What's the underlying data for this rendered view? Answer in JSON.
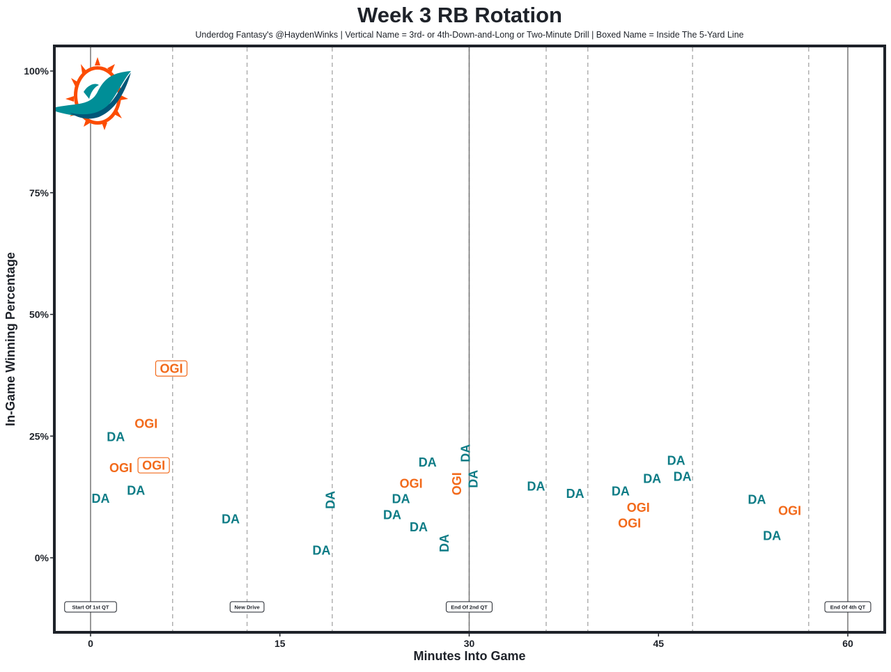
{
  "chart_data": {
    "type": "scatter",
    "title": "Week 3 RB Rotation",
    "subtitle": "Underdog Fantasy's @HaydenWinks | Vertical Name = 3rd- or 4th-Down-and-Long or Two-Minute Drill | Boxed Name = Inside The 5-Yard Line",
    "xlabel": "Minutes Into Game",
    "ylabel": "In-Game Winning Percentage",
    "xlim": [
      -2.8,
      62.5
    ],
    "ylim": [
      -15,
      105
    ],
    "xticks": [
      0,
      15,
      30,
      45,
      60
    ],
    "xtick_labels": [
      "0",
      "15",
      "30",
      "45",
      "60"
    ],
    "yticks": [
      0,
      25,
      50,
      75,
      100
    ],
    "ytick_labels": [
      "0%",
      "25%",
      "50%",
      "75%",
      "100%"
    ],
    "grid": false,
    "colors": {
      "DA": "#0e7c86",
      "OGI": "#f26a1b",
      "text": "#1e2229"
    },
    "logo_text": "Miami Dolphins",
    "quarter_lines": [
      0,
      30,
      60
    ],
    "event_lines": [
      6.5,
      12.4,
      19.15,
      30,
      36.1,
      39.4,
      47.7,
      56.9
    ],
    "annotations": [
      {
        "x": 0,
        "label": "Start Of 1st QT"
      },
      {
        "x": 12.4,
        "label": "New Drive"
      },
      {
        "x": 30,
        "label": "End Of 2nd QT"
      },
      {
        "x": 60,
        "label": "End Of 4th QT"
      }
    ],
    "points": [
      {
        "x": 0.8,
        "y": 12.2,
        "label": "DA",
        "style": "normal"
      },
      {
        "x": 2.0,
        "y": 24.9,
        "label": "DA",
        "style": "normal"
      },
      {
        "x": 2.4,
        "y": 18.5,
        "label": "OGI",
        "style": "normal"
      },
      {
        "x": 4.4,
        "y": 27.6,
        "label": "OGI",
        "style": "normal"
      },
      {
        "x": 3.6,
        "y": 13.9,
        "label": "DA",
        "style": "normal"
      },
      {
        "x": 5.0,
        "y": 19.0,
        "label": "OGI",
        "style": "boxed"
      },
      {
        "x": 6.4,
        "y": 38.9,
        "label": "OGI",
        "style": "boxed"
      },
      {
        "x": 11.1,
        "y": 8.0,
        "label": "DA",
        "style": "normal"
      },
      {
        "x": 18.3,
        "y": 1.6,
        "label": "DA",
        "style": "normal"
      },
      {
        "x": 19.0,
        "y": 11.9,
        "label": "DA",
        "style": "vertical"
      },
      {
        "x": 23.9,
        "y": 8.9,
        "label": "DA",
        "style": "normal"
      },
      {
        "x": 24.6,
        "y": 11.6,
        "label": "DA",
        "style": "normal"
      },
      {
        "x": 25.4,
        "y": 11.3,
        "label": "OGI",
        "style": "normal"
      },
      {
        "x": 26.0,
        "y": 6.4,
        "label": "DA",
        "style": "normal"
      },
      {
        "x": 26.7,
        "y": 19.7,
        "label": "DA",
        "style": "normal"
      },
      {
        "x": 28.0,
        "y": 3.0,
        "label": "DA",
        "style": "vertical"
      },
      {
        "x": 29.0,
        "y": 15.2,
        "label": "OGI",
        "style": "vertical"
      },
      {
        "x": 29.2,
        "y": 16.2,
        "label": "DA",
        "style": "vertical"
      },
      {
        "x": 29.7,
        "y": 21.5,
        "label": "DA",
        "style": "vertical"
      },
      {
        "x": 35.3,
        "y": 14.7,
        "label": "DA",
        "style": "normal"
      },
      {
        "x": 38.4,
        "y": 13.2,
        "label": "DA",
        "style": "normal"
      },
      {
        "x": 42.0,
        "y": 13.7,
        "label": "DA",
        "style": "normal"
      },
      {
        "x": 43.4,
        "y": 13.2,
        "label": "OGI",
        "style": "normal"
      },
      {
        "x": 42.7,
        "y": 8.3,
        "label": "OGI",
        "style": "normal"
      },
      {
        "x": 44.5,
        "y": 16.3,
        "label": "DA",
        "style": "normal"
      },
      {
        "x": 46.4,
        "y": 20.0,
        "label": "DA",
        "style": "normal"
      },
      {
        "x": 46.9,
        "y": 19.6,
        "label": "DA",
        "style": "normal"
      },
      {
        "x": 52.8,
        "y": 12.0,
        "label": "DA",
        "style": "normal"
      },
      {
        "x": 55.4,
        "y": 9.7,
        "label": "OGI",
        "style": "normal"
      },
      {
        "x": 54.0,
        "y": 4.6,
        "label": "DA",
        "style": "normal"
      }
    ]
  }
}
